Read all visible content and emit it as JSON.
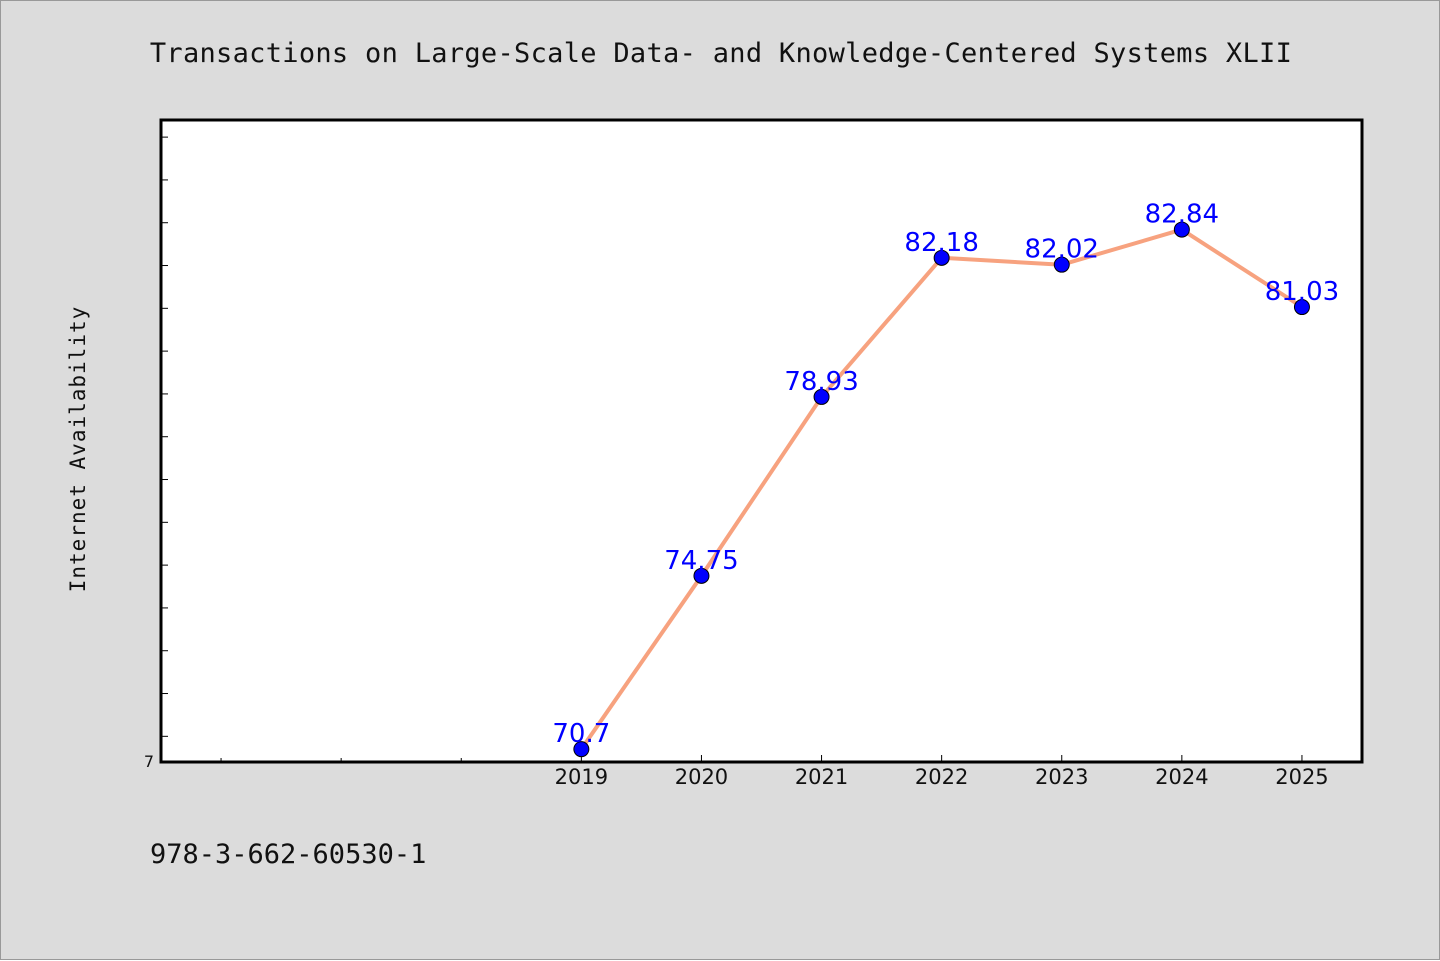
{
  "chart_data": {
    "type": "line",
    "title": "Transactions on Large-Scale Data- and Knowledge-Centered Systems XLII",
    "xlabel": "",
    "ylabel": "Internet Availability",
    "categories": [
      "2019",
      "2020",
      "2021",
      "2022",
      "2023",
      "2024",
      "2025"
    ],
    "series": [
      {
        "values": [
          70.7,
          74.75,
          78.93,
          82.18,
          82.02,
          82.84,
          81.03
        ]
      }
    ],
    "data_labels": [
      "70.7",
      "74.75",
      "78.93",
      "82.18",
      "82.02",
      "82.84",
      "81.03"
    ],
    "y_tick_labels": [
      "7"
    ],
    "ylim": [
      70.4,
      85.4
    ],
    "xlim": [
      2015.5,
      2025.5
    ],
    "grid": false,
    "legend": "none",
    "colors": {
      "line": "#f7a27f",
      "marker": "#0000ff",
      "label": "#0000ff",
      "figure_bg": "#dcdcdc",
      "plot_bg": "#ffffff"
    }
  },
  "footer": {
    "isbn": "978-3-662-60530-1"
  }
}
